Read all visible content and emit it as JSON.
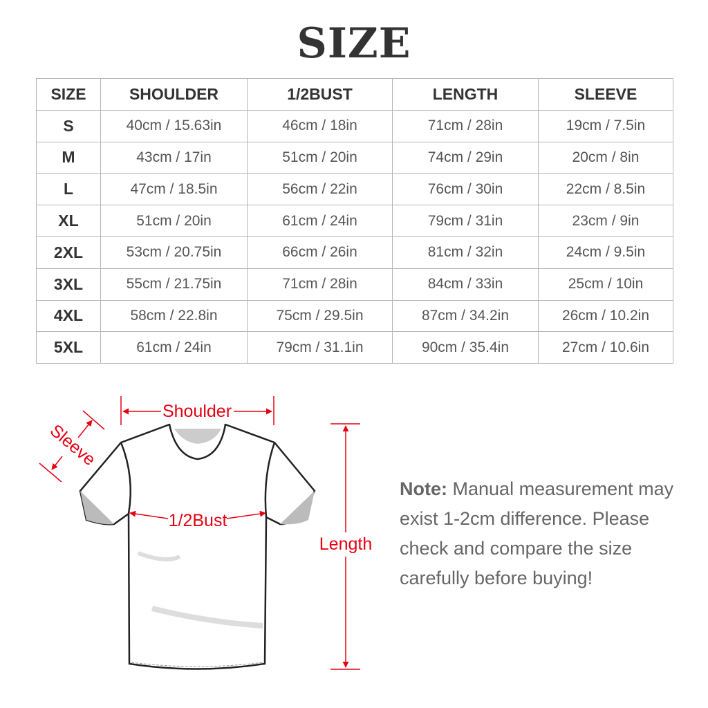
{
  "title": "SIZE",
  "table": {
    "headers": [
      "SIZE",
      "SHOULDER",
      "1/2BUST",
      "LENGTH",
      "SLEEVE"
    ],
    "rows": [
      [
        "S",
        "40cm / 15.63in",
        "46cm / 18in",
        "71cm / 28in",
        "19cm / 7.5in"
      ],
      [
        "M",
        "43cm / 17in",
        "51cm / 20in",
        "74cm / 29in",
        "20cm / 8in"
      ],
      [
        "L",
        "47cm / 18.5in",
        "56cm / 22in",
        "76cm / 30in",
        "22cm / 8.5in"
      ],
      [
        "XL",
        "51cm / 20in",
        "61cm / 24in",
        "79cm / 31in",
        "23cm / 9in"
      ],
      [
        "2XL",
        "53cm / 20.75in",
        "66cm / 26in",
        "81cm / 32in",
        "24cm / 9.5in"
      ],
      [
        "3XL",
        "55cm / 21.75in",
        "71cm / 28in",
        "84cm / 33in",
        "25cm / 10in"
      ],
      [
        "4XL",
        "58cm / 22.8in",
        "75cm / 29.5in",
        "87cm / 34.2in",
        "26cm / 10.2in"
      ],
      [
        "5XL",
        "61cm / 24in",
        "79cm / 31.1in",
        "90cm / 35.4in",
        "27cm / 10.6in"
      ]
    ]
  },
  "diagram": {
    "shoulder_label": "Shoulder",
    "sleeve_label": "Sleeve",
    "bust_label": "1/2Bust",
    "length_label": "Length",
    "accent_color": "#e60012"
  },
  "note": {
    "label": "Note:",
    "text": "Manual measurement may exist 1-2cm difference. Please check and compare the size carefully before buying!"
  }
}
